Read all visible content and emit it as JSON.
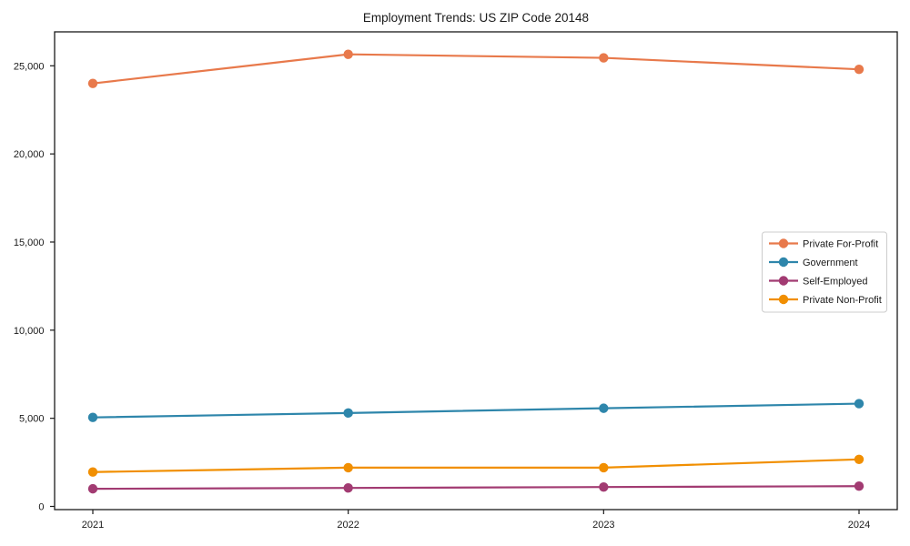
{
  "accent_colors": {
    "spine": "#1a1a1a",
    "legend_border": "#cccccc",
    "background": "#ffffff"
  },
  "chart_data": {
    "type": "line",
    "title": "Employment Trends: US ZIP Code 20148",
    "xlabel": "",
    "ylabel": "",
    "categories": [
      "2021",
      "2022",
      "2023",
      "2024"
    ],
    "series": [
      {
        "name": "Private For-Profit",
        "color": "#E8794B",
        "values": [
          24000,
          25650,
          25450,
          24800
        ]
      },
      {
        "name": "Government",
        "color": "#2E86AB",
        "values": [
          5050,
          5300,
          5570,
          5830
        ]
      },
      {
        "name": "Self-Employed",
        "color": "#A23B72",
        "values": [
          1000,
          1050,
          1100,
          1150
        ]
      },
      {
        "name": "Private Non-Profit",
        "color": "#F18F01",
        "values": [
          1950,
          2200,
          2200,
          2670
        ]
      }
    ],
    "y_ticks": [
      0,
      5000,
      10000,
      15000,
      20000,
      25000
    ],
    "y_tick_labels": [
      "0",
      "5,000",
      "10,000",
      "15,000",
      "20,000",
      "25,000"
    ],
    "ylim": [
      -180,
      26930
    ],
    "grid": false,
    "legend_position": "right-middle",
    "marker": "circle"
  }
}
